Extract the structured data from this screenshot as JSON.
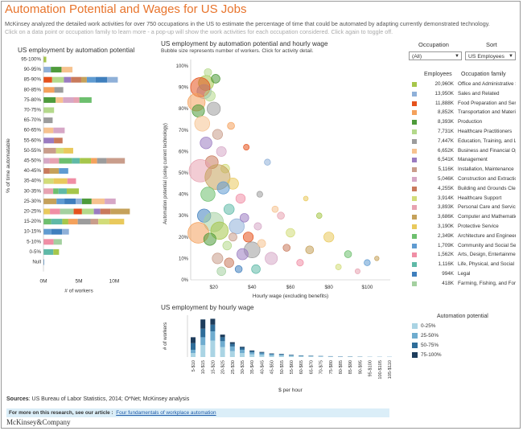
{
  "header": {
    "title": "Automation Potential and Wages for US Jobs",
    "subtitle": "McKinsey analyzed the detailed work activities for over 750 occupations in the US to estimate the percentage of time that could be automated by adapting currently demonstrated technology.",
    "instructions": "Click on a data point or occupation family to learn more - a pop-up will show the work activities for each occupation considered. Click again to toggle off."
  },
  "controls": {
    "occupation_label": "Occupation",
    "occupation_value": "(All)",
    "sort_label": "Sort",
    "sort_value": "US Employees",
    "employees_header": "Employees",
    "family_header": "Occupation family"
  },
  "colors": {
    "family": [
      "#a6c64b",
      "#8fb0d8",
      "#e5521c",
      "#f4a15c",
      "#4e9b3b",
      "#b4d98b",
      "#9c9c9c",
      "#f6c28f",
      "#9a7bc1",
      "#c99d8b",
      "#d6a7c6",
      "#c97a5c",
      "#d2dc79",
      "#e7a2b1",
      "#c5a15a",
      "#e9c95c",
      "#6dbf6e",
      "#5f9bd1",
      "#f08ea5",
      "#5fb9a7",
      "#3f7fbd",
      "#a4d0a0"
    ],
    "automation": [
      "#aad4e4",
      "#6faccf",
      "#2f6d99",
      "#1e3d5c"
    ]
  },
  "occupation_legend": [
    {
      "employees": "20,960K",
      "family": "Office and Administrative Support"
    },
    {
      "employees": "13,950K",
      "family": "Sales and Related"
    },
    {
      "employees": "11,888K",
      "family": "Food Preparation and Serving"
    },
    {
      "employees": "8,852K",
      "family": "Transportation and Material Moving"
    },
    {
      "employees": "8,393K",
      "family": "Production"
    },
    {
      "employees": "7,731K",
      "family": "Healthcare Practitioners"
    },
    {
      "employees": "7,447K",
      "family": "Education, Training, and Library"
    },
    {
      "employees": "6,652K",
      "family": "Business and Financial Operations"
    },
    {
      "employees": "6,541K",
      "family": "Management"
    },
    {
      "employees": "5,116K",
      "family": "Installation, Maintenance"
    },
    {
      "employees": "5,046K",
      "family": "Construction and Extraction"
    },
    {
      "employees": "4,255K",
      "family": "Building and Grounds Cleaning"
    },
    {
      "employees": "3,914K",
      "family": "Healthcare Support"
    },
    {
      "employees": "3,893K",
      "family": "Personal Care and Service"
    },
    {
      "employees": "3,686K",
      "family": "Computer and Mathematical"
    },
    {
      "employees": "3,190K",
      "family": "Protective Service"
    },
    {
      "employees": "2,349K",
      "family": "Architecture and Engineering"
    },
    {
      "employees": "1,709K",
      "family": "Community and Social Service"
    },
    {
      "employees": "1,562K",
      "family": "Arts, Design, Entertainment"
    },
    {
      "employees": "1,116K",
      "family": "Life, Physical, and Social Science"
    },
    {
      "employees": "994K",
      "family": "Legal"
    },
    {
      "employees": "418K",
      "family": "Farming, Fishing, and Forestry"
    }
  ],
  "chart_data": [
    {
      "type": "bar",
      "orientation": "horizontal",
      "stacked": true,
      "title": "US employment by automation potential",
      "xlabel": "# of workers",
      "ylabel": "% of time automatable",
      "xlim": [
        0,
        12500000
      ],
      "xticks": [
        "0M",
        "5M",
        "10M"
      ],
      "categories": [
        "95-100%",
        "90-95%",
        "85-90%",
        "80-85%",
        "75-80%",
        "70-75%",
        "65-70%",
        "60-65%",
        "55-60%",
        "50-55%",
        "45-50%",
        "40-45%",
        "35-40%",
        "30-35%",
        "25-30%",
        "20-25%",
        "15-20%",
        "10-15%",
        "5-10%",
        "0-5%",
        "Null"
      ],
      "values": [
        0.4,
        4.1,
        10.5,
        2.8,
        6.8,
        1.5,
        1.3,
        3.0,
        2.7,
        4.2,
        11.5,
        3.5,
        4.6,
        5.0,
        10.2,
        12.2,
        11.4,
        3.6,
        2.6,
        2.2,
        0.1
      ],
      "unit": "million workers"
    },
    {
      "type": "scatter",
      "title": "US employment by automation potential and hourly wage",
      "subtitle": "Bubble size represents number of workers.  Click for activity detail.",
      "xlabel": "Hourly wage (excluding benefits)",
      "ylabel": "Automation potential (using current technology)",
      "xlim": [
        8,
        112
      ],
      "ylim": [
        0,
        1.03
      ],
      "xticks": [
        "$20",
        "$40",
        "$60",
        "$80",
        "$100"
      ],
      "yticks": [
        "0%",
        "10%",
        "20%",
        "30%",
        "40%",
        "50%",
        "60%",
        "70%",
        "80%",
        "90%",
        "100%"
      ],
      "points": [
        [
          16,
          0.92,
          900
        ],
        [
          15,
          0.88,
          800
        ],
        [
          13,
          0.9,
          1500
        ],
        [
          11,
          0.83,
          1200
        ],
        [
          12,
          0.79,
          600
        ],
        [
          18,
          0.86,
          450
        ],
        [
          20,
          0.8,
          700
        ],
        [
          14,
          0.73,
          900
        ],
        [
          16,
          0.64,
          550
        ],
        [
          22,
          0.68,
          400
        ],
        [
          24,
          0.6,
          380
        ],
        [
          19,
          0.55,
          650
        ],
        [
          26,
          0.52,
          300
        ],
        [
          13,
          0.51,
          2000
        ],
        [
          22,
          0.48,
          2500
        ],
        [
          30,
          0.45,
          500
        ],
        [
          17,
          0.4,
          800
        ],
        [
          25,
          0.43,
          600
        ],
        [
          34,
          0.38,
          350
        ],
        [
          28,
          0.33,
          420
        ],
        [
          15,
          0.3,
          700
        ],
        [
          20,
          0.27,
          1500
        ],
        [
          23,
          0.23,
          1200
        ],
        [
          32,
          0.25,
          900
        ],
        [
          38,
          0.2,
          400
        ],
        [
          12,
          0.22,
          1700
        ],
        [
          18,
          0.19,
          600
        ],
        [
          27,
          0.16,
          300
        ],
        [
          40,
          0.14,
          1000
        ],
        [
          45,
          0.17,
          250
        ],
        [
          35,
          0.12,
          500
        ],
        [
          22,
          0.1,
          450
        ],
        [
          50,
          0.1,
          600
        ],
        [
          28,
          0.08,
          350
        ],
        [
          60,
          0.22,
          300
        ],
        [
          55,
          0.3,
          200
        ],
        [
          70,
          0.14,
          250
        ],
        [
          80,
          0.2,
          400
        ],
        [
          90,
          0.12,
          200
        ],
        [
          100,
          0.08,
          150
        ],
        [
          65,
          0.08,
          180
        ],
        [
          42,
          0.05,
          300
        ],
        [
          33,
          0.05,
          200
        ],
        [
          24,
          0.04,
          300
        ],
        [
          75,
          0.3,
          120
        ],
        [
          48,
          0.55,
          150
        ],
        [
          37,
          0.62,
          130
        ],
        [
          29,
          0.72,
          200
        ],
        [
          21,
          0.94,
          300
        ],
        [
          17,
          0.97,
          220
        ],
        [
          44,
          0.4,
          140
        ],
        [
          52,
          0.33,
          160
        ],
        [
          36,
          0.29,
          300
        ],
        [
          30,
          0.2,
          260
        ],
        [
          43,
          0.25,
          220
        ],
        [
          58,
          0.15,
          200
        ],
        [
          85,
          0.06,
          130
        ],
        [
          95,
          0.04,
          100
        ],
        [
          105,
          0.1,
          80
        ],
        [
          68,
          0.38,
          90
        ]
      ]
    },
    {
      "type": "bar",
      "stacked": true,
      "title": "US employment by hourly wage",
      "xlabel": "$ per hour",
      "ylabel": "# of workers",
      "categories": [
        "5-$10",
        "10-$15",
        "15-$20",
        "20-$25",
        "25-$30",
        "30-$35",
        "35-$40",
        "40-$45",
        "45-$50",
        "50-$55",
        "55-$60",
        "60-$65",
        "65-$70",
        "70-$75",
        "75-$80",
        "80-$85",
        "85-$90",
        "90-$95",
        "95-$100",
        "100-$105",
        "105-$110"
      ],
      "series": [
        {
          "values": [
            6,
            18,
            25,
            15,
            9,
            6,
            4,
            3,
            2,
            2,
            1.5,
            1,
            1,
            0.8,
            0.6,
            0.5,
            0.4,
            0.4,
            0.3,
            0.3,
            0.2
          ]
        },
        {
          "values": [
            5,
            12,
            14,
            9,
            7,
            5,
            3,
            2.5,
            2,
            1.5,
            1,
            0.8,
            0.6,
            0.5,
            0.4,
            0.3,
            0.3,
            0.2,
            0.2,
            0.2,
            0.2
          ]
        },
        {
          "values": [
            10,
            13,
            10,
            6,
            4,
            3,
            2,
            1.5,
            1,
            0.8,
            0.6,
            0.5,
            0.4,
            0.3,
            0.2,
            0.2,
            0.2,
            0.1,
            0.1,
            0.1,
            0.1
          ]
        },
        {
          "values": [
            9,
            14,
            9,
            4,
            2.5,
            1.5,
            1,
            0.7,
            0.5,
            0.4,
            0.3,
            0.2,
            0.2,
            0.1,
            0.1,
            0.1,
            0.1,
            0.1,
            0,
            0,
            0
          ]
        }
      ],
      "legend_title": "Automation potential",
      "legend": [
        "0-25%",
        "25-50%",
        "50-75%",
        "75-100%"
      ]
    }
  ],
  "footer": {
    "sources_label": "Sources",
    "sources_text": ":  US Bureau of Labor Statistics, 2014; O*Net; McKinsey analysis",
    "more_text": "For more on this research, see our article :",
    "more_link": "Four fundamentals of workplace automation",
    "brand": "McKinsey&Company"
  }
}
